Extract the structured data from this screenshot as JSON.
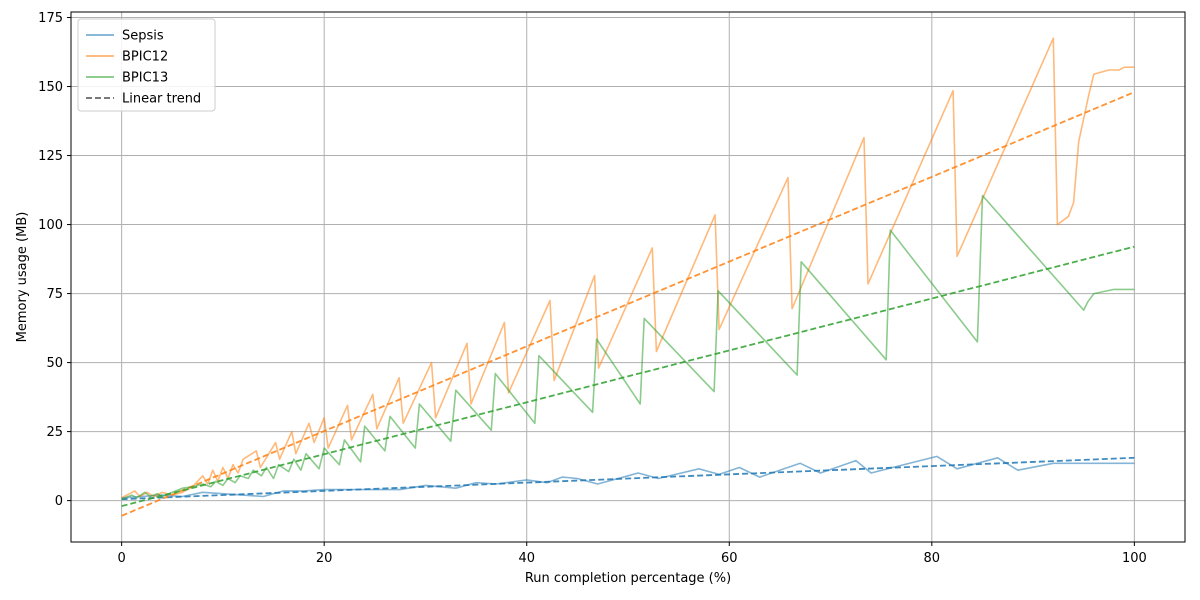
{
  "chart_data": {
    "type": "line",
    "title": "",
    "xlabel": "Run completion percentage (%)",
    "ylabel": "Memory usage (MB)",
    "xlim": [
      -5,
      105
    ],
    "ylim": [
      -15,
      177
    ],
    "xticks": [
      "0",
      "20",
      "40",
      "60",
      "80",
      "100"
    ],
    "yticks": [
      "0",
      "25",
      "50",
      "75",
      "100",
      "125",
      "150",
      "175"
    ],
    "grid": true,
    "legend_position": "top-left",
    "series": [
      {
        "name": "Sepsis",
        "color": "#1f77b4",
        "style": "solid",
        "x": [
          0,
          2,
          4,
          6,
          8,
          10,
          12,
          14,
          16,
          18,
          20,
          22,
          25,
          27.5,
          30,
          33,
          35,
          37,
          40,
          42,
          43.5,
          45,
          47,
          50,
          51,
          53,
          57,
          59,
          61,
          63,
          67,
          69,
          72.5,
          74,
          80.5,
          82.5,
          86.5,
          88.5,
          92,
          100
        ],
        "values": [
          1,
          1.5,
          2,
          1.5,
          3,
          2.5,
          2,
          1.5,
          3.5,
          3.5,
          4,
          4,
          4,
          4,
          5.5,
          4.5,
          6.5,
          6,
          7.5,
          6.5,
          8.5,
          8,
          6,
          9,
          10,
          8,
          11.5,
          9.5,
          12,
          8.5,
          13.5,
          10,
          14.5,
          10,
          16,
          11.5,
          15.5,
          11,
          13.5,
          13.5
        ]
      },
      {
        "name": "Linear trend (Sepsis)",
        "color": "#1f77b4",
        "style": "dashed",
        "x": [
          0,
          100
        ],
        "values": [
          0.5,
          15.5
        ]
      },
      {
        "name": "BPIC12",
        "color": "#ff7f0e",
        "style": "solid",
        "x": [
          0,
          1.3,
          1.8,
          2.5,
          3.2,
          4,
          5,
          6,
          7,
          8,
          8.5,
          9,
          9.5,
          10,
          10.5,
          11,
          11.5,
          12,
          13.3,
          13.7,
          15.2,
          15.6,
          16.8,
          17.2,
          18.5,
          19,
          20,
          20.4,
          22.3,
          22.7,
          24.8,
          25.2,
          27.4,
          27.8,
          30.6,
          31,
          34.1,
          34.5,
          37.8,
          38.2,
          42.3,
          42.7,
          46.7,
          47.1,
          52.4,
          52.8,
          58.6,
          59,
          65.8,
          66.2,
          73.3,
          73.7,
          82.1,
          82.5,
          92,
          92.4,
          93.5,
          94,
          94.5,
          95.5,
          96,
          97.5,
          98.5,
          99,
          100
        ],
        "values": [
          1,
          3.5,
          1.5,
          3,
          1.5,
          3,
          2,
          3,
          5,
          9,
          6,
          11,
          7,
          12,
          8,
          13,
          10,
          15,
          18,
          12,
          21,
          15,
          25,
          17,
          28,
          21,
          30,
          19,
          34.5,
          22,
          38.5,
          26,
          44.5,
          28,
          50,
          30,
          57,
          35,
          64.5,
          39,
          72.5,
          43.5,
          81.5,
          48,
          91.5,
          54,
          103.5,
          62,
          117,
          69.5,
          131.5,
          78.5,
          148.5,
          88.5,
          167.5,
          100,
          103,
          108,
          130,
          147,
          154.5,
          156,
          156,
          157,
          157
        ]
      },
      {
        "name": "Linear trend (BPIC12)",
        "color": "#ff7f0e",
        "style": "dashed",
        "x": [
          0,
          100
        ],
        "values": [
          -5.5,
          148
        ]
      },
      {
        "name": "BPIC13",
        "color": "#2ca02c",
        "style": "solid",
        "x": [
          0,
          1,
          1.5,
          2.3,
          2.8,
          3.5,
          4,
          5,
          6,
          7,
          8,
          8.8,
          9.3,
          10,
          10.5,
          11.2,
          11.7,
          12.5,
          13,
          13.8,
          14.3,
          15,
          15.5,
          16.5,
          17,
          17.7,
          18.2,
          19.5,
          20,
          21.5,
          22,
          23.6,
          24,
          26,
          26.5,
          29,
          29.4,
          32.5,
          33,
          36.5,
          36.9,
          40.8,
          41.2,
          46.5,
          46.9,
          51.2,
          51.6,
          58.5,
          58.9,
          66.7,
          67.1,
          75.5,
          75.9,
          84.5,
          85,
          95,
          95.4,
          96,
          98,
          100
        ],
        "values": [
          0.5,
          2,
          1,
          3,
          1.5,
          2.5,
          1.5,
          3,
          4.5,
          5,
          6,
          5,
          7,
          5.5,
          8,
          6.5,
          9,
          8,
          11,
          9,
          12,
          8,
          13,
          10.5,
          15,
          11,
          17,
          11.5,
          19,
          13,
          22,
          14,
          27,
          18,
          30.5,
          19,
          35,
          21.5,
          40,
          25.5,
          46,
          28,
          52.5,
          32,
          58.5,
          35,
          66,
          39.5,
          76,
          45.5,
          86.5,
          51,
          98,
          57.5,
          110.5,
          69,
          72,
          75,
          76.5,
          76.5
        ]
      },
      {
        "name": "Linear trend (BPIC13)",
        "color": "#2ca02c",
        "style": "dashed",
        "x": [
          0,
          100
        ],
        "values": [
          -2,
          92
        ]
      }
    ],
    "legend": [
      {
        "label": "Sepsis",
        "color": "#1f77b4",
        "style": "solid"
      },
      {
        "label": "BPIC12",
        "color": "#ff7f0e",
        "style": "solid"
      },
      {
        "label": "BPIC13",
        "color": "#2ca02c",
        "style": "solid"
      },
      {
        "label": "Linear trend",
        "color": "#555555",
        "style": "dashed"
      }
    ]
  }
}
